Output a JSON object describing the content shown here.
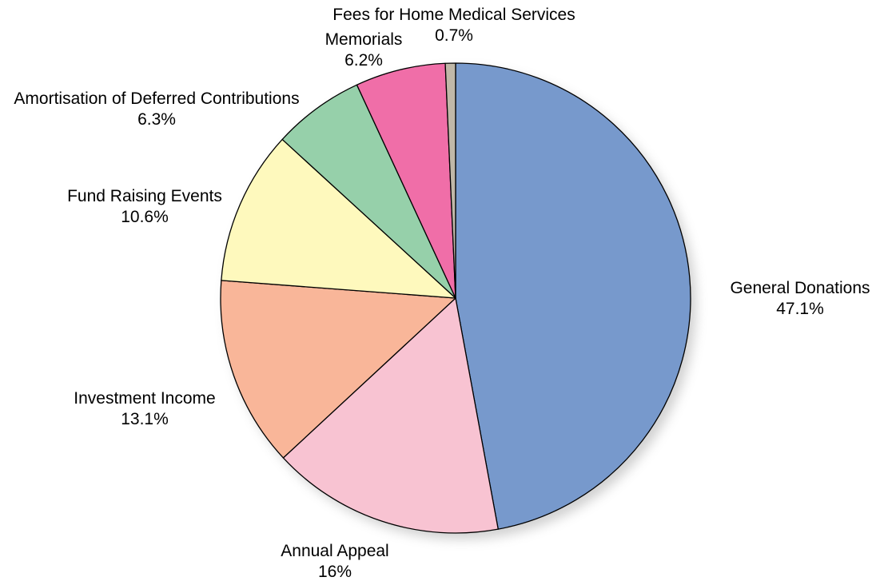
{
  "chart_data": {
    "type": "pie",
    "title": "",
    "start_angle_deg": 0,
    "direction": "clockwise",
    "shadow": true,
    "slices": [
      {
        "label": "General Donations",
        "value": 47.1,
        "value_label": "47.1%",
        "color": "#7799cc"
      },
      {
        "label": "Annual Appeal",
        "value": 16,
        "value_label": "16%",
        "color": "#f8c3d2"
      },
      {
        "label": "Investment Income",
        "value": 13.1,
        "value_label": "13.1%",
        "color": "#f9b699"
      },
      {
        "label": "Fund Raising Events",
        "value": 10.6,
        "value_label": "10.6%",
        "color": "#fef9bd"
      },
      {
        "label": "Amortisation of Deferred Contributions",
        "value": 6.3,
        "value_label": "6.3%",
        "color": "#96d0aa"
      },
      {
        "label": "Memorials",
        "value": 6.2,
        "value_label": "6.2%",
        "color": "#f06ea8"
      },
      {
        "label": "Fees for Home Medical Services",
        "value": 0.7,
        "value_label": "0.7%",
        "color": "#c0b8a8"
      }
    ]
  }
}
